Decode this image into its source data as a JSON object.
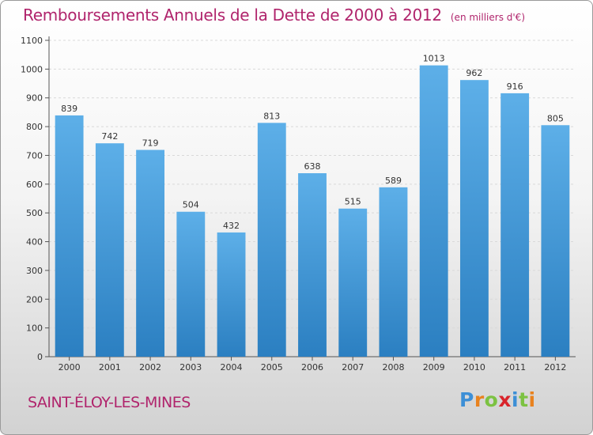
{
  "chart_data": {
    "type": "bar",
    "title": "Remboursements Annuels de la Dette de 2000 à 2012",
    "subtitle": "(en milliers d'€)",
    "categories": [
      "2000",
      "2001",
      "2002",
      "2003",
      "2004",
      "2005",
      "2006",
      "2007",
      "2008",
      "2009",
      "2010",
      "2011",
      "2012"
    ],
    "values": [
      839,
      742,
      719,
      504,
      432,
      813,
      638,
      515,
      589,
      1013,
      962,
      916,
      805
    ],
    "ylim": [
      0,
      1100
    ],
    "yticks": [
      0,
      100,
      200,
      300,
      400,
      500,
      600,
      700,
      800,
      900,
      1000,
      1100
    ],
    "grid": true,
    "colors": {
      "bar_top": "#5dafe8",
      "bar_bottom": "#2b7fc1",
      "title": "#b0246c"
    }
  },
  "place": "SAINT-ÉLOY-LES-MINES",
  "logo": {
    "letters": [
      "P",
      "r",
      "o",
      "x",
      "i",
      "t",
      "i"
    ],
    "colors": [
      "#3d8fd6",
      "#e8821e",
      "#7cc242",
      "#d9242b",
      "#3d8fd6",
      "#7cc242",
      "#e8821e"
    ]
  }
}
